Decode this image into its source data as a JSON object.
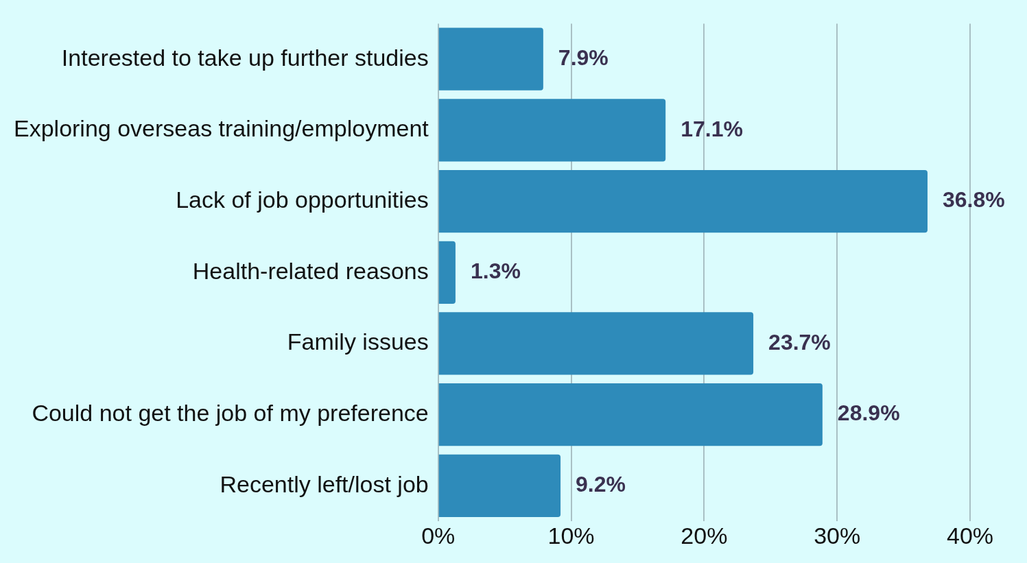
{
  "chart_data": {
    "type": "bar",
    "orientation": "horizontal",
    "categories": [
      "Interested to take up further studies",
      "Exploring overseas training/employment",
      "Lack of job opportunities",
      "Health-related reasons",
      "Family issues",
      "Could not get the job of my preference",
      "Recently left/lost job"
    ],
    "values": [
      7.9,
      17.1,
      36.8,
      1.3,
      23.7,
      28.9,
      9.2
    ],
    "value_labels": [
      "7.9%",
      "17.1%",
      "36.8%",
      "1.3%",
      "23.7%",
      "28.9%",
      "9.2%"
    ],
    "color": "#2e8bba",
    "xlim": [
      0,
      40
    ],
    "xticks": [
      {
        "value": 0,
        "label": "0%"
      },
      {
        "value": 10,
        "label": "10%"
      },
      {
        "value": 20,
        "label": "20%"
      },
      {
        "value": 30,
        "label": "30%"
      },
      {
        "value": 40,
        "label": "40%"
      }
    ],
    "grid": "x",
    "legend": false
  }
}
